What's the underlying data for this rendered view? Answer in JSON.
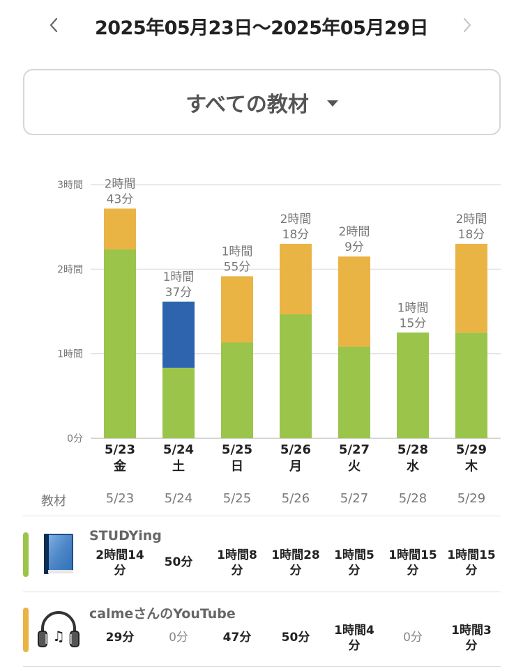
{
  "header": {
    "range": "2025年05月23日〜2025年05月29日",
    "prev_icon": "chevron-left-icon",
    "next_icon": "chevron-right-icon"
  },
  "filter": {
    "label": "すべての教材",
    "caret_icon": "caret-down-icon"
  },
  "chart_data": {
    "type": "bar",
    "stacked": true,
    "unit": "minutes",
    "ylim": [
      0,
      180
    ],
    "yticks": [
      {
        "value": 0,
        "label": "0分"
      },
      {
        "value": 60,
        "label": "1時間"
      },
      {
        "value": 120,
        "label": "2時間"
      },
      {
        "value": 180,
        "label": "3時間"
      }
    ],
    "grid": true,
    "categories": [
      "5/23",
      "5/24",
      "5/25",
      "5/26",
      "5/27",
      "5/28",
      "5/29"
    ],
    "weekdays": [
      "金",
      "土",
      "日",
      "月",
      "火",
      "水",
      "木"
    ],
    "totals": [
      [
        "2時間",
        "43分"
      ],
      [
        "1時間",
        "37分"
      ],
      [
        "1時間",
        "55分"
      ],
      [
        "2時間",
        "18分"
      ],
      [
        "2時間",
        "9分"
      ],
      [
        "1時間",
        "15分"
      ],
      [
        "2時間",
        "18分"
      ]
    ],
    "series": [
      {
        "name": "STUDYing",
        "color": "#9bc44b",
        "values": [
          134,
          50,
          68,
          88,
          65,
          75,
          75
        ]
      },
      {
        "name": "",
        "color": "#2e64ad",
        "values": [
          0,
          47,
          0,
          0,
          0,
          0,
          0
        ]
      },
      {
        "name": "calmeさんのYouTube",
        "color": "#eab444",
        "values": [
          29,
          0,
          47,
          50,
          64,
          0,
          63
        ]
      }
    ]
  },
  "table": {
    "header_label": "教材",
    "dates": [
      "5/23",
      "5/24",
      "5/25",
      "5/26",
      "5/27",
      "5/28",
      "5/29"
    ],
    "rows": [
      {
        "name": "STUDYing",
        "color": "#9bc44b",
        "icon": "book-icon",
        "cells": [
          [
            "2時間14",
            "分"
          ],
          [
            "50分"
          ],
          [
            "1時間8",
            "分"
          ],
          [
            "1時間28",
            "分"
          ],
          [
            "1時間5",
            "分"
          ],
          [
            "1時間15",
            "分"
          ],
          [
            "1時間15",
            "分"
          ]
        ]
      },
      {
        "name": "calmeさんのYouTube",
        "color": "#eab444",
        "icon": "headphones-icon",
        "cells": [
          [
            "29分"
          ],
          [
            "0分"
          ],
          [
            "47分"
          ],
          [
            "50分"
          ],
          [
            "1時間4",
            "分"
          ],
          [
            "0分"
          ],
          [
            "1時間3",
            "分"
          ]
        ]
      }
    ]
  }
}
